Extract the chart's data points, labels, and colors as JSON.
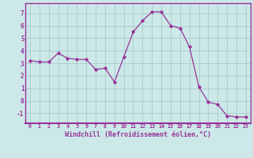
{
  "x": [
    0,
    1,
    2,
    3,
    4,
    5,
    6,
    7,
    8,
    9,
    10,
    11,
    12,
    13,
    14,
    15,
    16,
    17,
    18,
    19,
    20,
    21,
    22,
    23
  ],
  "y": [
    3.2,
    3.1,
    3.1,
    3.8,
    3.4,
    3.3,
    3.3,
    2.5,
    2.6,
    1.5,
    3.5,
    5.5,
    6.4,
    7.1,
    7.1,
    6.0,
    5.8,
    4.3,
    1.1,
    -0.1,
    -0.3,
    -1.2,
    -1.3,
    -1.3
  ],
  "line_color": "#993399",
  "marker": "D",
  "marker_size": 2.2,
  "bg_color": "#cce8e8",
  "grid_color": "#aacccc",
  "xlabel": "Windchill (Refroidissement éolien,°C)",
  "xlabel_color": "#993399",
  "tick_color": "#993399",
  "axis_color": "#993399",
  "ylabel_ticks": [
    -1,
    0,
    1,
    2,
    3,
    4,
    5,
    6,
    7
  ],
  "xlim": [
    -0.5,
    23.5
  ],
  "ylim": [
    -1.8,
    7.8
  ],
  "xticks": [
    0,
    1,
    2,
    3,
    4,
    5,
    6,
    7,
    8,
    9,
    10,
    11,
    12,
    13,
    14,
    15,
    16,
    17,
    18,
    19,
    20,
    21,
    22,
    23
  ],
  "xtick_labels": [
    "0",
    "1",
    "2",
    "3",
    "4",
    "5",
    "6",
    "7",
    "8",
    "9",
    "10",
    "11",
    "12",
    "13",
    "14",
    "15",
    "16",
    "17",
    "18",
    "19",
    "20",
    "21",
    "22",
    "23"
  ]
}
